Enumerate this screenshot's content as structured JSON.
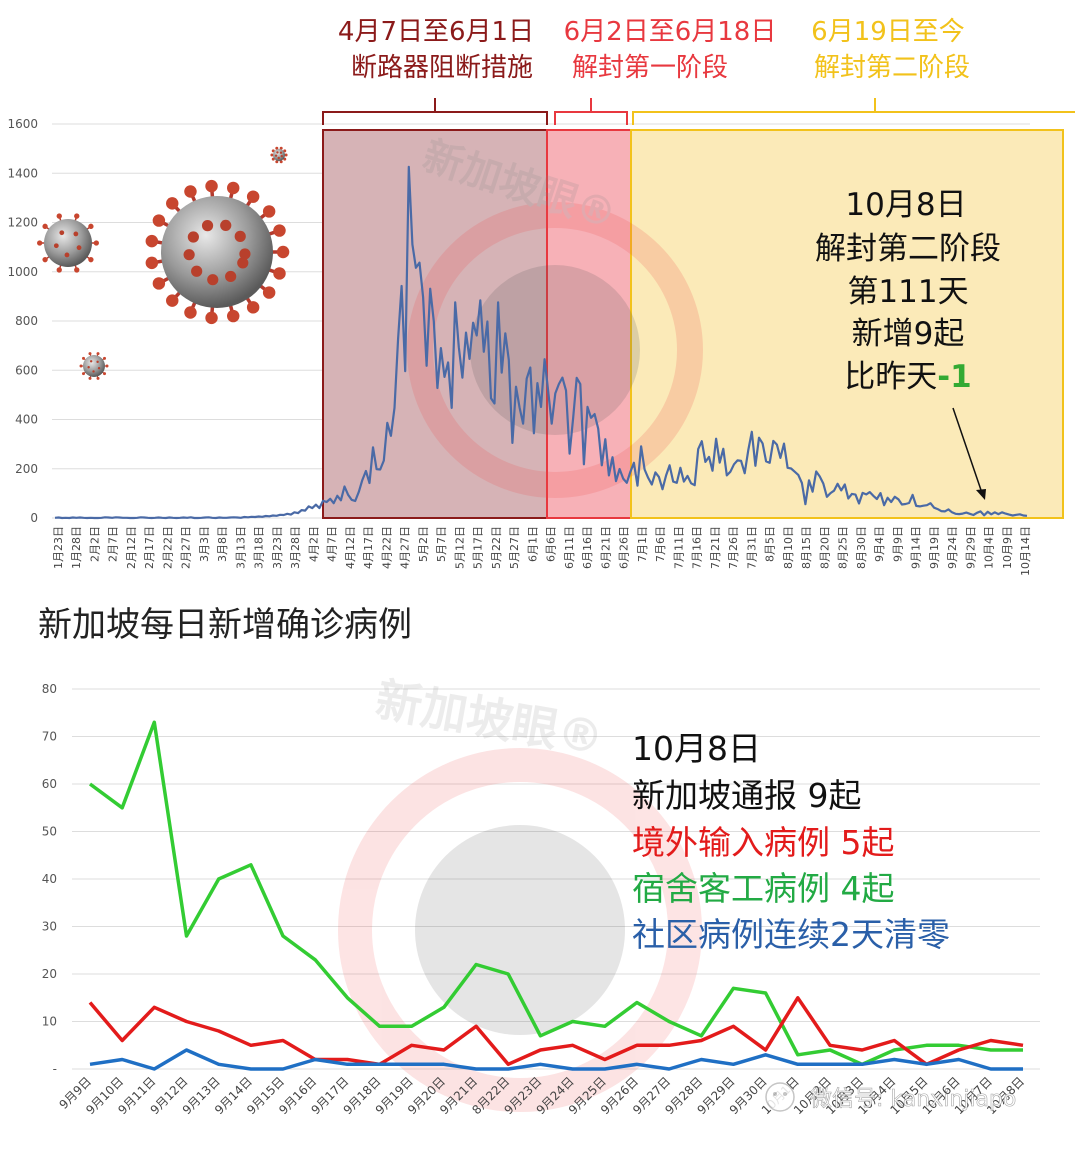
{
  "colors": {
    "phase1": "#8b1a1a",
    "phase1_fill": "#d6b3b6",
    "phase2": "#e8383f",
    "phase2_fill": "#f7b1b7",
    "phase3": "#f2c21b",
    "phase3_fill": "#fbeab8",
    "line_top": "#4a6aa6",
    "grid": "#dddddd",
    "imported": "#e31b1b",
    "dorm": "#33cc33",
    "community": "#1f6fc4",
    "delta": "#33aa33"
  },
  "top": {
    "phases": [
      {
        "range": "4月7日至6月1日",
        "name": "断路器阻断措施"
      },
      {
        "range": "6月2日至6月18日",
        "name": "解封第一阶段"
      },
      {
        "range": "6月19日至今",
        "name": "解封第二阶段"
      }
    ],
    "annotation": {
      "l1": "10月8日",
      "l2": "解封第二阶段",
      "l3": "第111天",
      "l4": "新增9起",
      "l5a": "比昨天",
      "l5b": "-1"
    },
    "watermark": "新加坡眼®"
  },
  "bottom": {
    "annotation": {
      "l1": "10月8日",
      "l2": "新加坡通报 9起",
      "l3": "境外输入病例 5起",
      "l4": "宿舍客工病例 4起",
      "l5": "社区病例连续2天清零"
    },
    "watermark": "新加坡眼®",
    "wechat": "微信号: kanxinjiapo"
  },
  "chart_data": [
    {
      "type": "line",
      "title": "新加坡每日新增确诊病例",
      "ylim": [
        0,
        1600
      ],
      "y_ticks": [
        "0",
        "200",
        "400",
        "600",
        "800",
        "1000",
        "1200",
        "1400",
        "1600"
      ],
      "x_tick_labels": [
        "1月23日",
        "1月28日",
        "2月2日",
        "2月7日",
        "2月12日",
        "2月17日",
        "2月22日",
        "2月27日",
        "3月3日",
        "3月8日",
        "3月13日",
        "3月18日",
        "3月23日",
        "3月28日",
        "4月2日",
        "4月7日",
        "4月12日",
        "4月17日",
        "4月22日",
        "4月27日",
        "5月2日",
        "5月7日",
        "5月12日",
        "5月17日",
        "5月22日",
        "5月27日",
        "6月1日",
        "6月6日",
        "6月11日",
        "6月16日",
        "6月21日",
        "6月26日",
        "7月1日",
        "7月6日",
        "7月11日",
        "7月16日",
        "7月21日",
        "7月26日",
        "7月31日",
        "8月5日",
        "8月10日",
        "8月15日",
        "8月20日",
        "8月25日",
        "8月30日",
        "9月4日",
        "9月9日",
        "9月14日",
        "9月19日",
        "9月24日",
        "9月29日",
        "10月4日",
        "10月9日",
        "10月14日"
      ],
      "series": [
        {
          "name": "",
          "values": [
            1,
            2,
            0,
            1,
            0,
            2,
            1,
            2,
            1,
            0,
            1,
            0,
            0,
            1,
            3,
            2,
            1,
            3,
            2,
            1,
            1,
            0,
            0,
            1,
            3,
            2,
            1,
            0,
            1,
            2,
            1,
            0,
            2,
            1,
            0,
            1,
            2,
            1,
            3,
            0,
            0,
            1,
            2,
            3,
            1,
            0,
            2,
            1,
            1,
            2,
            3,
            2,
            1,
            4,
            3,
            5,
            4,
            6,
            5,
            8,
            7,
            10,
            9,
            13,
            12,
            17,
            14,
            23,
            20,
            32,
            30,
            47,
            40,
            54,
            40,
            70,
            65,
            78,
            60,
            90,
            72,
            128,
            95,
            74,
            69,
            106,
            154,
            191,
            142,
            287,
            198,
            197,
            233,
            386,
            334,
            447,
            728,
            942,
            596,
            1426,
            1111,
            1016,
            1037,
            897,
            618,
            931,
            799,
            528,
            690,
            573,
            632,
            447,
            876,
            694,
            570,
            753,
            646,
            793,
            741,
            884,
            675,
            798,
            486,
            465,
            876,
            590,
            750,
            642,
            305,
            533,
            448,
            383,
            566,
            611,
            344,
            548,
            451,
            645,
            518,
            383,
            506,
            544,
            570,
            518,
            261,
            408,
            569,
            544,
            218,
            451,
            407,
            422,
            363,
            214,
            320,
            173,
            247,
            150,
            199,
            160,
            143,
            187,
            224,
            131,
            291,
            197,
            163,
            136,
            185,
            167,
            117,
            173,
            214,
            148,
            143,
            204,
            148,
            171,
            141,
            133,
            280,
            312,
            228,
            248,
            192,
            322,
            225,
            281,
            173,
            188,
            218,
            234,
            232,
            182,
            276,
            350,
            212,
            326,
            303,
            230,
            224,
            313,
            298,
            244,
            302,
            204,
            201,
            188,
            175,
            142,
            56,
            153,
            107,
            189,
            169,
            140,
            86,
            101,
            111,
            139,
            112,
            136,
            79,
            98,
            95,
            59,
            102,
            96,
            105,
            90,
            77,
            101,
            52,
            82,
            65,
            86,
            76,
            55,
            57,
            61,
            94,
            49,
            47,
            50,
            52,
            60,
            42,
            36,
            28,
            27,
            35,
            23,
            17,
            16,
            18,
            22,
            17,
            12,
            21,
            27,
            11,
            25,
            15,
            23,
            16,
            23,
            18,
            14,
            10,
            13,
            15,
            10,
            9
          ]
        }
      ]
    },
    {
      "type": "line",
      "ylim": [
        0,
        80
      ],
      "y_ticks": [
        "-",
        "10",
        "20",
        "30",
        "40",
        "50",
        "60",
        "70",
        "80"
      ],
      "categories": [
        "9月9日",
        "9月10日",
        "9月11日",
        "9月12日",
        "9月13日",
        "9月14日",
        "9月15日",
        "9月16日",
        "9月17日",
        "9月18日",
        "9月19日",
        "9月20日",
        "9月21日",
        "8月22日",
        "9月23日",
        "9月24日",
        "9月25日",
        "9月26日",
        "9月27日",
        "9月28日",
        "9月29日",
        "9月30日",
        "10月1日",
        "10月2日",
        "10月3日",
        "10月4日",
        "10月5日",
        "10月6日",
        "10月7日",
        "10月8日"
      ],
      "series": [
        {
          "name": "境外输入病例",
          "values": [
            14,
            6,
            13,
            10,
            8,
            5,
            6,
            2,
            2,
            1,
            5,
            4,
            9,
            1,
            4,
            5,
            2,
            5,
            5,
            6,
            9,
            4,
            15,
            5,
            4,
            6,
            1,
            4,
            6,
            5
          ]
        },
        {
          "name": "宿舍客工病例",
          "values": [
            60,
            55,
            73,
            28,
            40,
            43,
            28,
            23,
            15,
            9,
            9,
            13,
            22,
            20,
            7,
            10,
            9,
            14,
            10,
            7,
            17,
            16,
            3,
            4,
            1,
            4,
            5,
            5,
            4,
            4
          ]
        },
        {
          "name": "社区病例",
          "values": [
            1,
            2,
            0,
            4,
            1,
            0,
            0,
            2,
            1,
            1,
            1,
            1,
            0,
            0,
            1,
            0,
            0,
            1,
            0,
            2,
            1,
            3,
            1,
            1,
            1,
            2,
            1,
            2,
            0,
            0
          ]
        }
      ]
    }
  ]
}
